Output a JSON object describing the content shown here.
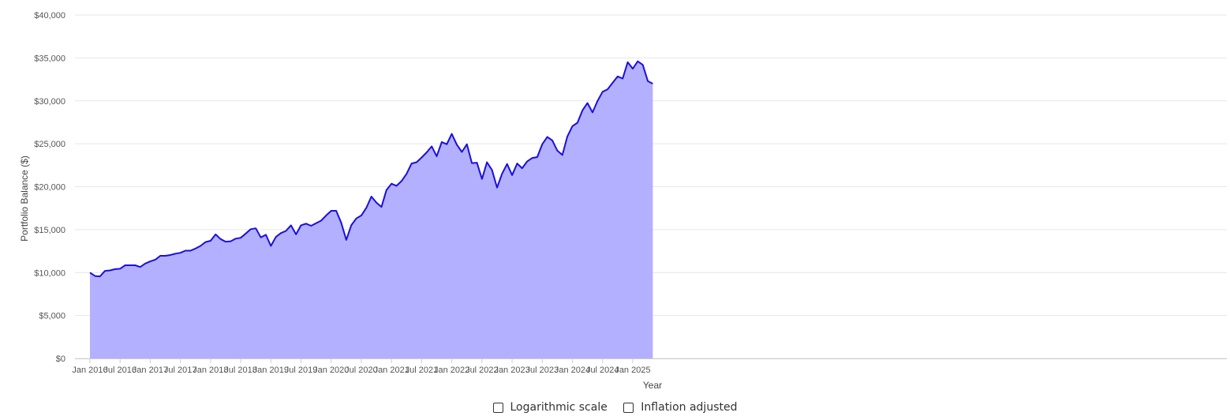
{
  "chart_data": {
    "type": "area",
    "xlabel": "Year",
    "ylabel": "Portfolio Balance ($)",
    "ylim": [
      0,
      40000
    ],
    "y_ticks": [
      "$0",
      "$5,000",
      "$10,000",
      "$15,000",
      "$20,000",
      "$25,000",
      "$30,000",
      "$35,000",
      "$40,000"
    ],
    "x_tick_labels": [
      "Jan 2016",
      "Jul 2016",
      "Jan 2017",
      "Jul 2017",
      "Jan 2018",
      "Jul 2018",
      "Jan 2019",
      "Jul 2019",
      "Jan 2020",
      "Jul 2020",
      "Jan 2021",
      "Jul 2021",
      "Jan 2022",
      "Jul 2022",
      "Jan 2023",
      "Jul 2023",
      "Jan 2024",
      "Jul 2024",
      "Jan 2025"
    ],
    "x_start": "Jan 2016",
    "x_frequency": "monthly",
    "grid": true,
    "colors": {
      "line": "#1a0fe0",
      "fill": "#b3b0ff",
      "grid": "#e6e6e6"
    },
    "values": [
      10000,
      9600,
      9550,
      10200,
      10250,
      10400,
      10450,
      10850,
      10850,
      10850,
      10650,
      11050,
      11300,
      11500,
      11950,
      11950,
      12050,
      12200,
      12300,
      12550,
      12550,
      12800,
      13100,
      13550,
      13700,
      14450,
      13900,
      13600,
      13650,
      13950,
      14050,
      14550,
      15050,
      15150,
      14100,
      14400,
      13100,
      14150,
      14600,
      14850,
      15500,
      14450,
      15500,
      15700,
      15450,
      15750,
      16050,
      16650,
      17200,
      17200,
      15800,
      13800,
      15500,
      16300,
      16650,
      17550,
      18850,
      18150,
      17650,
      19600,
      20350,
      20100,
      20650,
      21500,
      22700,
      22850,
      23400,
      24000,
      24700,
      23550,
      25200,
      24950,
      26150,
      24900,
      24050,
      24950,
      22750,
      22800,
      20900,
      22850,
      21950,
      19900,
      21500,
      22650,
      21350,
      22700,
      22150,
      22950,
      23350,
      23450,
      24950,
      25800,
      25400,
      24200,
      23700,
      25850,
      27050,
      27450,
      28900,
      29750,
      28650,
      30000,
      31050,
      31350,
      32100,
      32850,
      32600,
      34500,
      33750,
      34600,
      34200,
      32300,
      32000
    ]
  },
  "controls": {
    "log_scale_label": "Logarithmic scale",
    "log_scale_checked": false,
    "inflation_label": "Inflation adjusted",
    "inflation_checked": false
  }
}
